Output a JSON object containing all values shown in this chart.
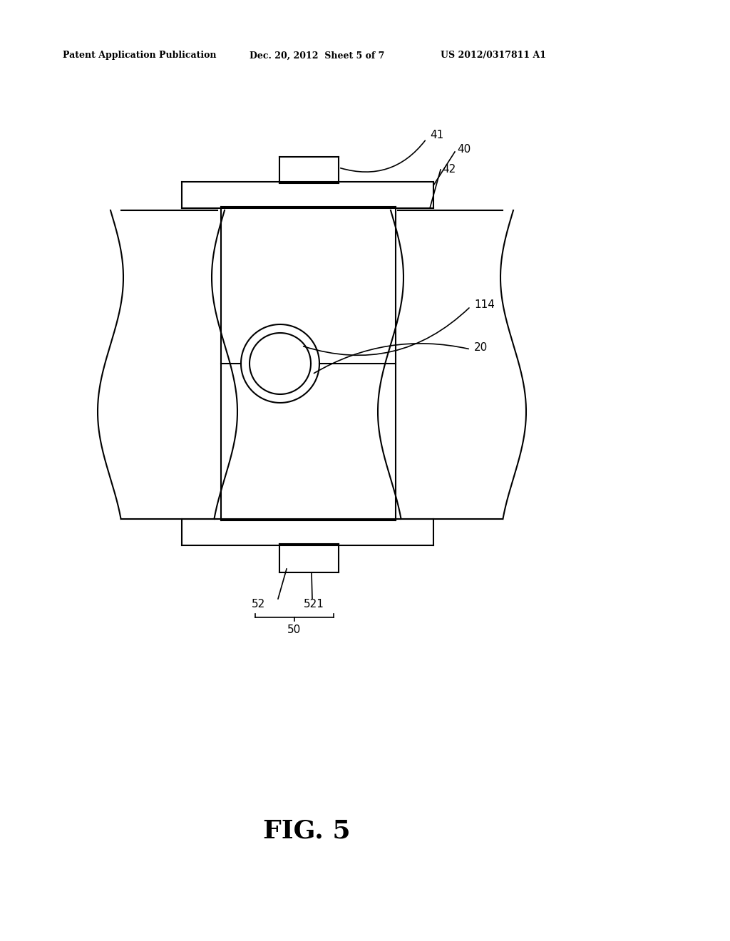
{
  "bg_color": "#ffffff",
  "line_color": "#000000",
  "header_left": "Patent Application Publication",
  "header_mid": "Dec. 20, 2012  Sheet 5 of 7",
  "header_right": "US 2012/0317811 A1",
  "fig_label": "FIG. 5",
  "lw": 1.5,
  "header_fontsize": 9,
  "label_fontsize": 11,
  "fig_label_fontsize": 26
}
